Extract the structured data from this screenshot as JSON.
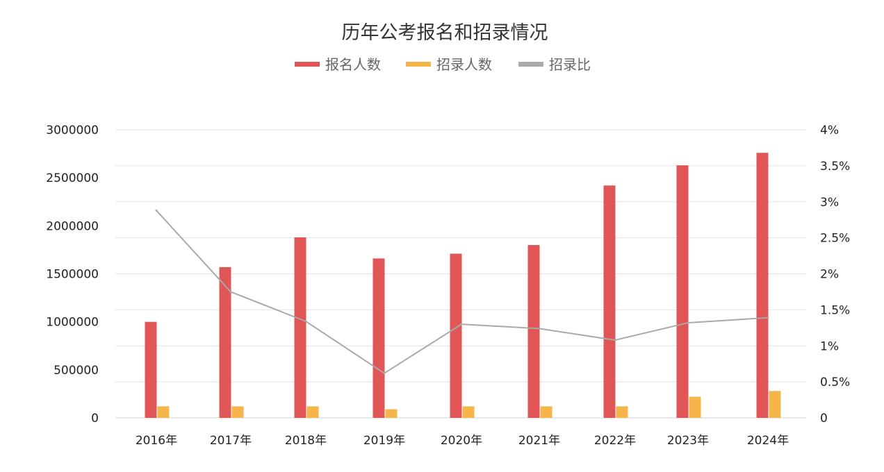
{
  "chart_data": {
    "type": "bar",
    "title": "历年公考报名和招录情况",
    "categories": [
      "2016年",
      "2017年",
      "2018年",
      "2019年",
      "2020年",
      "2021年",
      "2022年",
      "2023年",
      "2024年"
    ],
    "series": [
      {
        "name": "报名人数",
        "type": "bar",
        "axis": "left",
        "color": "#e05555",
        "values": [
          1000000,
          1570000,
          1880000,
          1660000,
          1710000,
          1800000,
          2420000,
          2630000,
          2760000
        ]
      },
      {
        "name": "招录人数",
        "type": "bar",
        "axis": "left",
        "color": "#f5b54a",
        "values": [
          120000,
          120000,
          120000,
          90000,
          120000,
          120000,
          120000,
          220000,
          280000
        ]
      },
      {
        "name": "招录比",
        "type": "line",
        "axis": "right",
        "color": "#a9a9a9",
        "values": [
          2.88,
          1.75,
          1.34,
          0.62,
          1.3,
          1.24,
          1.08,
          1.32,
          1.39
        ]
      }
    ],
    "left_axis": {
      "ylim": [
        0,
        3000000
      ],
      "ticks": [
        0,
        500000,
        1000000,
        1500000,
        2000000,
        2500000,
        3000000
      ],
      "tick_labels": [
        "0",
        "500000",
        "1000000",
        "1500000",
        "2000000",
        "2500000",
        "3000000"
      ]
    },
    "right_axis": {
      "ylim": [
        0,
        4
      ],
      "ticks": [
        0,
        0.5,
        1,
        1.5,
        2,
        2.5,
        3,
        3.5,
        4
      ],
      "tick_labels": [
        "0",
        "0.5%",
        "1%",
        "1.5%",
        "2%",
        "2.5%",
        "3%",
        "3.5%",
        "4%"
      ]
    },
    "grid": true,
    "legend_position": "top-center"
  }
}
